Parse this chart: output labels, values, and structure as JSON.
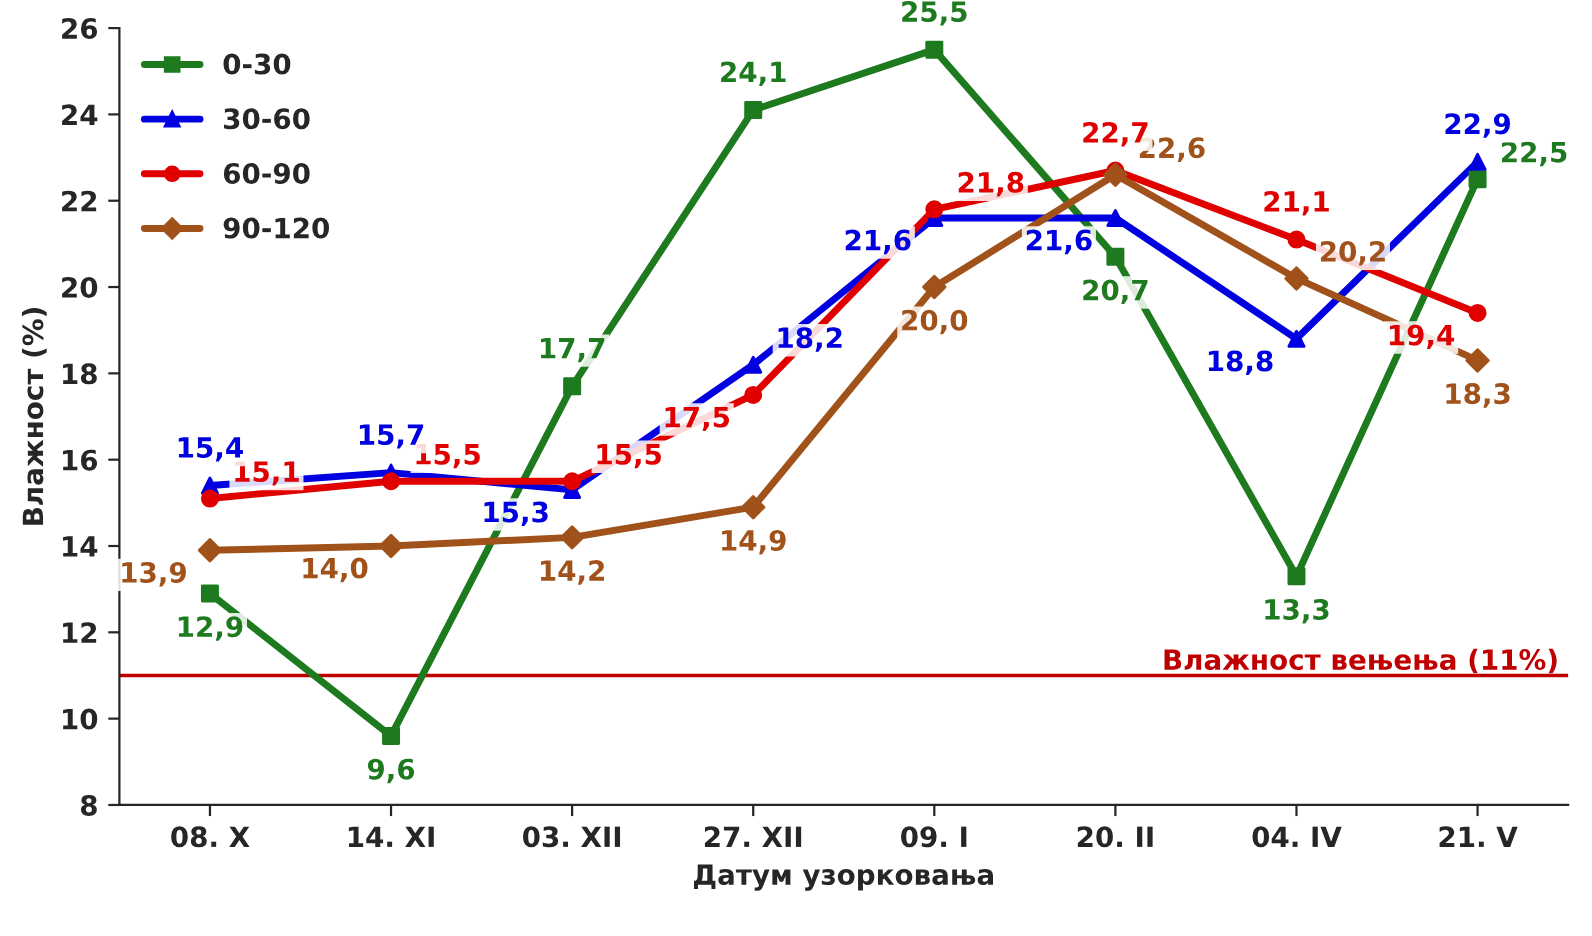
{
  "chart_data": {
    "type": "line",
    "xlabel": "Датум узорковања",
    "ylabel": "Влажност (%)",
    "categories": [
      "08. X",
      "14. XI",
      "03. XII",
      "27. XII",
      "09. I",
      "20. II",
      "04. IV",
      "21. V"
    ],
    "ylim": [
      8,
      26
    ],
    "yticks": [
      8,
      10,
      12,
      14,
      16,
      18,
      20,
      22,
      24,
      26
    ],
    "grid": false,
    "legend": "top left",
    "series": [
      {
        "name": "0-30",
        "color": "#1e7a1e",
        "marker": "square",
        "values": [
          12.9,
          9.6,
          17.7,
          24.1,
          25.5,
          20.7,
          13.3,
          22.5
        ],
        "value_labels": [
          "12,9",
          "9,6",
          "17,7",
          "24,1",
          "25,5",
          "20,7",
          "13,3",
          "22,5"
        ]
      },
      {
        "name": "30-60",
        "color": "#0000e0",
        "marker": "triangle",
        "values": [
          15.4,
          15.7,
          15.3,
          18.2,
          21.6,
          21.6,
          18.8,
          22.9
        ],
        "value_labels": [
          "15,4",
          "15,7",
          "15,3",
          "18,2",
          "21,6",
          "21,6",
          "18,8",
          "22,9"
        ]
      },
      {
        "name": "60-90",
        "color": "#e00000",
        "marker": "circle",
        "values": [
          15.1,
          15.5,
          15.5,
          17.5,
          21.8,
          22.7,
          21.1,
          19.4
        ],
        "value_labels": [
          "15,1",
          "15,5",
          "15,5",
          "17,5",
          "21,8",
          "22,7",
          "21,1",
          "19,4"
        ]
      },
      {
        "name": "90-120",
        "color": "#a0521a",
        "marker": "diamond",
        "values": [
          13.9,
          14.0,
          14.2,
          14.9,
          20.0,
          22.6,
          20.2,
          18.3
        ],
        "value_labels": [
          "13,9",
          "14,0",
          "14,2",
          "14,9",
          "20,0",
          "22,6",
          "20,2",
          "18,3"
        ]
      }
    ],
    "ref_lines": [
      {
        "axis": "y",
        "value": 11,
        "label": "Влажност вењења (11%)",
        "color": "#c00000"
      }
    ]
  }
}
